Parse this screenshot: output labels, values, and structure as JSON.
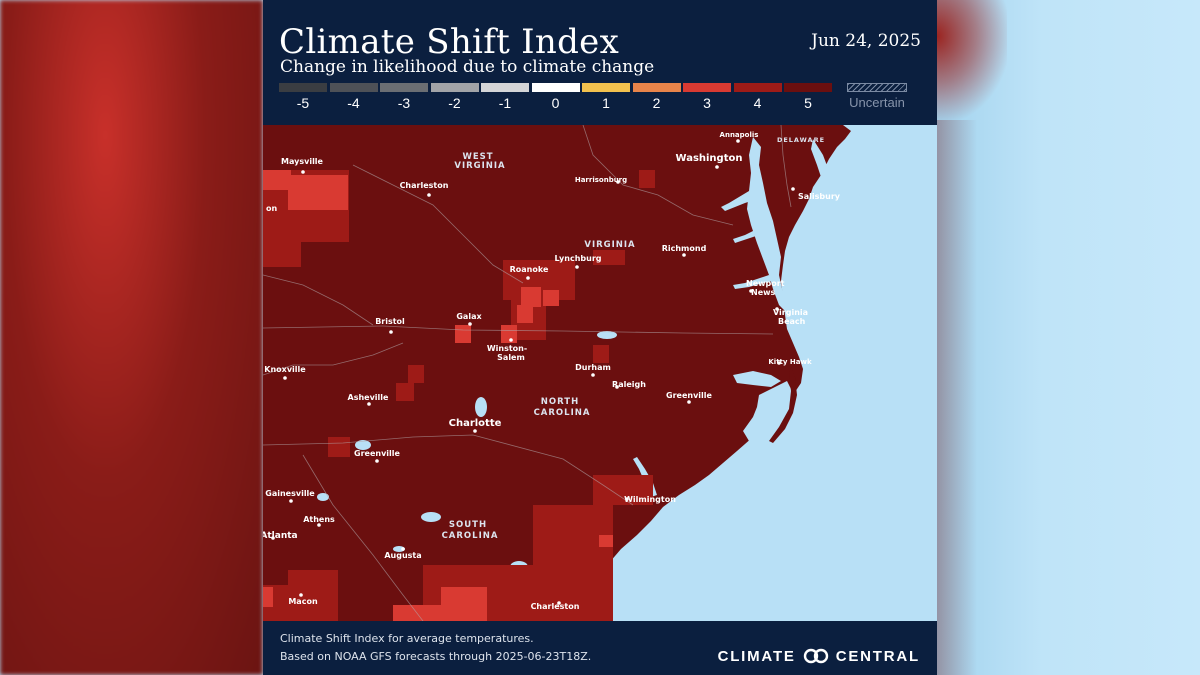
{
  "header": {
    "title": "Climate Shift Index",
    "subtitle": "Change in likelihood due to climate change",
    "date": "Jun 24, 2025"
  },
  "legend": {
    "items": [
      {
        "label": "-5",
        "color": "#3a3d42"
      },
      {
        "label": "-4",
        "color": "#4e5157"
      },
      {
        "label": "-3",
        "color": "#6b6e73"
      },
      {
        "label": "-2",
        "color": "#a2a4a8"
      },
      {
        "label": "-1",
        "color": "#d4d5d7"
      },
      {
        "label": "0",
        "color": "#ffffff"
      },
      {
        "label": "1",
        "color": "#f2c14e"
      },
      {
        "label": "2",
        "color": "#e8844a"
      },
      {
        "label": "3",
        "color": "#d93a32"
      },
      {
        "label": "4",
        "color": "#9e1b17"
      },
      {
        "label": "5",
        "color": "#6b0f0f"
      }
    ],
    "uncertain_label": "Uncertain"
  },
  "map": {
    "colors": {
      "index5": "#6b0f0f",
      "index4": "#9e1b17",
      "index3": "#d93a32",
      "water": "#b8e0f6"
    },
    "states": [
      {
        "name": "WEST\nVIRGINIA"
      },
      {
        "name": "VIRGINIA"
      },
      {
        "name": "NORTH\nCAROLINA"
      },
      {
        "name": "SOUTH\nCAROLINA"
      },
      {
        "name": "DELAWARE"
      }
    ],
    "cities": [
      {
        "name": "Maysville"
      },
      {
        "name": "Charleston"
      },
      {
        "name": "Harrisonburg"
      },
      {
        "name": "Annapolis"
      },
      {
        "name": "Washington"
      },
      {
        "name": "Salisbury"
      },
      {
        "name": "Richmond"
      },
      {
        "name": "Lynchburg"
      },
      {
        "name": "Roanoke"
      },
      {
        "name": "Newport\nNews"
      },
      {
        "name": "Virginia\nBeach"
      },
      {
        "name": "Bristol"
      },
      {
        "name": "Galax"
      },
      {
        "name": "Winston-\nSalem"
      },
      {
        "name": "Kitty Hawk"
      },
      {
        "name": "Durham"
      },
      {
        "name": "Raleigh"
      },
      {
        "name": "Knoxville"
      },
      {
        "name": "Asheville"
      },
      {
        "name": "Greenville"
      },
      {
        "name": "Charlotte"
      },
      {
        "name": "Greenville"
      },
      {
        "name": "Wilmington"
      },
      {
        "name": "Gainesville"
      },
      {
        "name": "Athens"
      },
      {
        "name": "Atlanta"
      },
      {
        "name": "Augusta"
      },
      {
        "name": "Macon"
      },
      {
        "name": "Charleston"
      },
      {
        "name": "on"
      }
    ]
  },
  "footer": {
    "line1": "Climate Shift Index for average temperatures.",
    "line2": "Based on NOAA GFS forecasts through 2025-06-23T18Z.",
    "brand_left": "CLIMATE",
    "brand_right": "CENTRAL",
    "logo_icon": "interlocking-rings-icon"
  }
}
